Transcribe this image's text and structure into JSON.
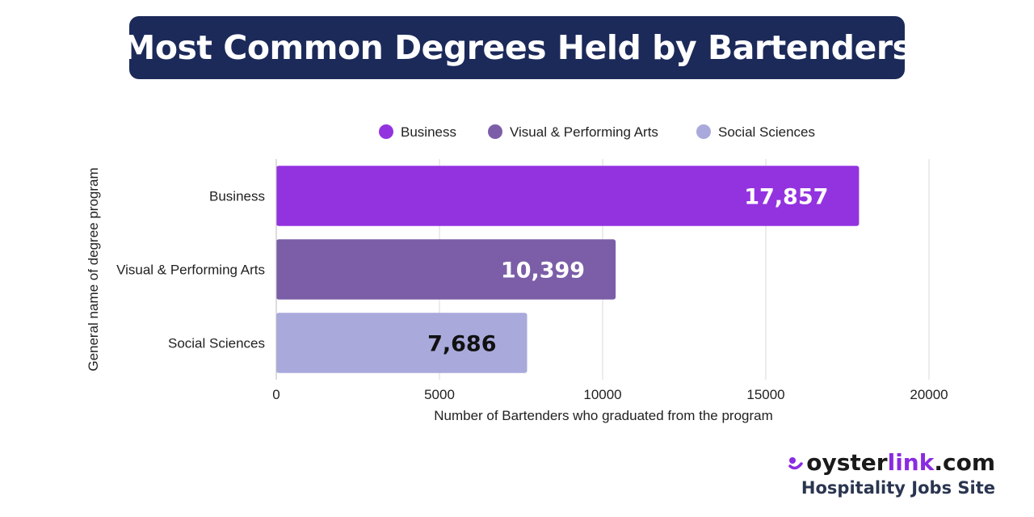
{
  "title": "Most Common Degrees Held by Bartenders",
  "colors": {
    "title_bg": "#1c2a5a",
    "title_text": "#ffffff",
    "grid": "#d9d9d9",
    "axis_text": "#222222"
  },
  "chart_data": {
    "type": "bar",
    "orientation": "horizontal",
    "categories": [
      "Business",
      "Visual & Performing Arts",
      "Social Sciences"
    ],
    "values": [
      17857,
      10399,
      7686
    ],
    "value_labels": [
      "17,857",
      "10,399",
      "7,686"
    ],
    "bar_colors": [
      "#9333e0",
      "#7b5ea7",
      "#a9a9dc"
    ],
    "label_colors": [
      "#ffffff",
      "#ffffff",
      "#111111"
    ],
    "xlabel": "Number of Bartenders who graduated from the program",
    "ylabel": "General name of degree program",
    "xlim": [
      0,
      20000
    ],
    "xticks": [
      0,
      5000,
      10000,
      15000,
      20000
    ],
    "xtick_labels": [
      "0",
      "5000",
      "10000",
      "15000",
      "20000"
    ],
    "grid": true,
    "legend": {
      "position": "top",
      "entries": [
        {
          "label": "Business",
          "color": "#9333e0"
        },
        {
          "label": "Visual & Performing Arts",
          "color": "#7b5ea7"
        },
        {
          "label": "Social Sciences",
          "color": "#a9a9dc"
        }
      ]
    }
  },
  "logo": {
    "brand_prefix": "oyster",
    "brand_accent": "link",
    "brand_suffix": ".com",
    "tagline": "Hospitality Jobs Site",
    "accent_color": "#8a2be2"
  }
}
